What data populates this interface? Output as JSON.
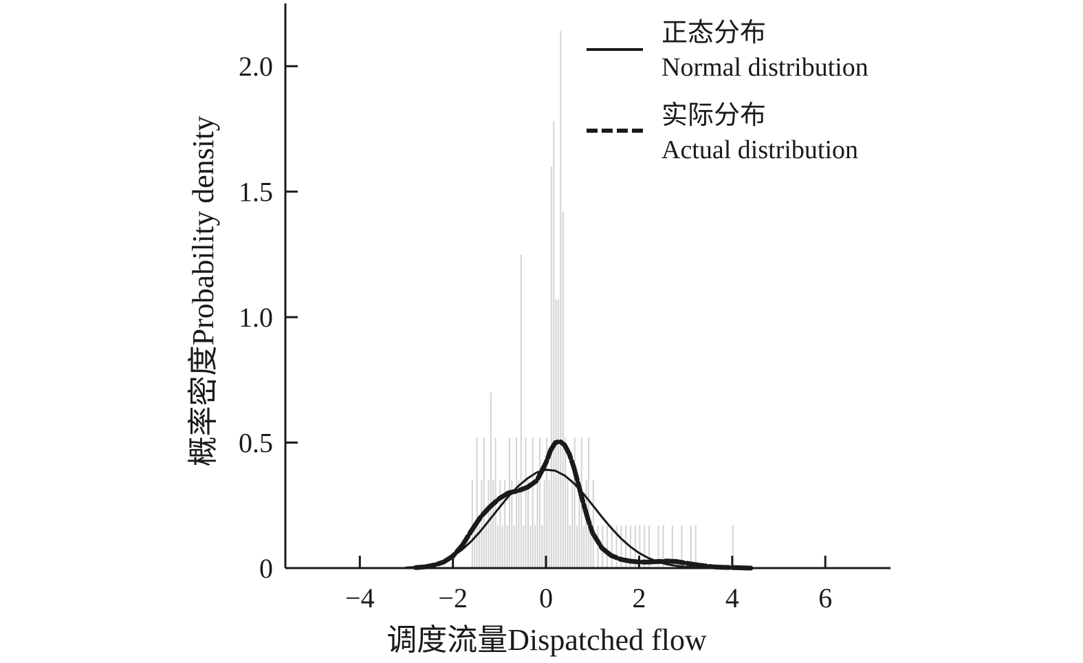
{
  "chart_data": {
    "type": "histogram-with-density",
    "xlabel": "调度流量Dispatched flow",
    "ylabel": "概率密度Probability density",
    "xlim": [
      -5.6,
      7.4
    ],
    "ylim": [
      0,
      2.25
    ],
    "x_ticks": [
      -4,
      -2,
      0,
      2,
      4,
      6
    ],
    "x_tick_labels": [
      "−4",
      "−2",
      "0",
      "2",
      "4",
      "6"
    ],
    "y_ticks": [
      0,
      0.5,
      1.0,
      1.5,
      2.0
    ],
    "y_tick_labels": [
      "0",
      "0.5",
      "1.0",
      "1.5",
      "2.0"
    ],
    "grid": false,
    "legend_position": "top-right",
    "legend": [
      {
        "label_cn": "正态分布",
        "label_en": "Normal distribution",
        "style": "solid"
      },
      {
        "label_cn": "实际分布",
        "label_en": "Actual distribution",
        "style": "dashed"
      }
    ],
    "colors": {
      "bars": "#d4d4d4",
      "lines": "#1a1a1a",
      "axes": "#1a1a1a"
    },
    "histogram": {
      "bin_width": 0.05,
      "bins": [
        {
          "x": -1.6,
          "density": 0.35
        },
        {
          "x": -1.55,
          "density": 0.17
        },
        {
          "x": -1.5,
          "density": 0.52
        },
        {
          "x": -1.45,
          "density": 0.17
        },
        {
          "x": -1.4,
          "density": 0.35
        },
        {
          "x": -1.35,
          "density": 0.52
        },
        {
          "x": -1.3,
          "density": 0.17
        },
        {
          "x": -1.25,
          "density": 0.35
        },
        {
          "x": -1.2,
          "density": 0.7
        },
        {
          "x": -1.15,
          "density": 0.35
        },
        {
          "x": -1.1,
          "density": 0.52
        },
        {
          "x": -1.05,
          "density": 0.17
        },
        {
          "x": -1.0,
          "density": 0.35
        },
        {
          "x": -0.95,
          "density": 0.17
        },
        {
          "x": -0.9,
          "density": 0.35
        },
        {
          "x": -0.85,
          "density": 0.17
        },
        {
          "x": -0.8,
          "density": 0.52
        },
        {
          "x": -0.75,
          "density": 0.35
        },
        {
          "x": -0.7,
          "density": 0.17
        },
        {
          "x": -0.65,
          "density": 0.52
        },
        {
          "x": -0.6,
          "density": 0.35
        },
        {
          "x": -0.55,
          "density": 1.25
        },
        {
          "x": -0.5,
          "density": 0.17
        },
        {
          "x": -0.45,
          "density": 0.52
        },
        {
          "x": -0.4,
          "density": 0.35
        },
        {
          "x": -0.35,
          "density": 0.17
        },
        {
          "x": -0.3,
          "density": 0.52
        },
        {
          "x": -0.25,
          "density": 0.17
        },
        {
          "x": -0.2,
          "density": 0.35
        },
        {
          "x": -0.15,
          "density": 0.52
        },
        {
          "x": -0.1,
          "density": 0.17
        },
        {
          "x": -0.05,
          "density": 0.35
        },
        {
          "x": 0.0,
          "density": 0.52
        },
        {
          "x": 0.05,
          "density": 0.35
        },
        {
          "x": 0.1,
          "density": 1.6
        },
        {
          "x": 0.15,
          "density": 1.78
        },
        {
          "x": 0.2,
          "density": 1.07
        },
        {
          "x": 0.25,
          "density": 1.07
        },
        {
          "x": 0.3,
          "density": 2.14
        },
        {
          "x": 0.35,
          "density": 1.42
        },
        {
          "x": 0.4,
          "density": 0.52
        },
        {
          "x": 0.45,
          "density": 0.35
        },
        {
          "x": 0.5,
          "density": 0.17
        },
        {
          "x": 0.55,
          "density": 0.35
        },
        {
          "x": 0.6,
          "density": 0.52
        },
        {
          "x": 0.65,
          "density": 0.17
        },
        {
          "x": 0.7,
          "density": 0.35
        },
        {
          "x": 0.75,
          "density": 0.52
        },
        {
          "x": 0.8,
          "density": 0.17
        },
        {
          "x": 0.85,
          "density": 0.35
        },
        {
          "x": 0.9,
          "density": 0.52
        },
        {
          "x": 0.95,
          "density": 0.17
        },
        {
          "x": 1.0,
          "density": 0.35
        },
        {
          "x": 1.1,
          "density": 0.17
        },
        {
          "x": 1.2,
          "density": 0.17
        },
        {
          "x": 1.3,
          "density": 0.17
        },
        {
          "x": 1.4,
          "density": 0.17
        },
        {
          "x": 1.5,
          "density": 0.17
        },
        {
          "x": 1.6,
          "density": 0.17
        },
        {
          "x": 1.7,
          "density": 0.17
        },
        {
          "x": 1.8,
          "density": 0.17
        },
        {
          "x": 1.9,
          "density": 0.17
        },
        {
          "x": 2.0,
          "density": 0.17
        },
        {
          "x": 2.1,
          "density": 0.17
        },
        {
          "x": 2.2,
          "density": 0.17
        },
        {
          "x": 2.4,
          "density": 0.17
        },
        {
          "x": 2.5,
          "density": 0.17
        },
        {
          "x": 2.7,
          "density": 0.17
        },
        {
          "x": 2.9,
          "density": 0.17
        },
        {
          "x": 3.1,
          "density": 0.17
        },
        {
          "x": 3.2,
          "density": 0.17
        },
        {
          "x": 4.0,
          "density": 0.17
        }
      ]
    },
    "series": [
      {
        "name": "正态分布 Normal distribution",
        "style": "solid",
        "x": [
          -3.0,
          -2.8,
          -2.6,
          -2.4,
          -2.2,
          -2.0,
          -1.8,
          -1.6,
          -1.4,
          -1.2,
          -1.0,
          -0.8,
          -0.6,
          -0.4,
          -0.2,
          0.0,
          0.2,
          0.4,
          0.6,
          0.8,
          1.0,
          1.2,
          1.4,
          1.6,
          1.8,
          2.0,
          2.2,
          2.4,
          2.6,
          2.8,
          3.0,
          3.2,
          3.4,
          3.6,
          3.8,
          4.0
        ],
        "y": [
          0.002,
          0.004,
          0.008,
          0.015,
          0.028,
          0.047,
          0.074,
          0.108,
          0.149,
          0.195,
          0.242,
          0.287,
          0.326,
          0.357,
          0.381,
          0.392,
          0.388,
          0.369,
          0.338,
          0.297,
          0.251,
          0.204,
          0.16,
          0.12,
          0.087,
          0.06,
          0.04,
          0.025,
          0.015,
          0.009,
          0.005,
          0.003,
          0.001,
          0.001,
          0.0,
          0.0
        ]
      },
      {
        "name": "实际分布 Actual distribution",
        "style": "dashed",
        "x": [
          -2.8,
          -2.6,
          -2.4,
          -2.2,
          -2.0,
          -1.8,
          -1.6,
          -1.4,
          -1.2,
          -1.0,
          -0.8,
          -0.6,
          -0.4,
          -0.2,
          0.0,
          0.1,
          0.2,
          0.3,
          0.4,
          0.5,
          0.6,
          0.7,
          0.8,
          0.9,
          1.0,
          1.2,
          1.4,
          1.6,
          1.8,
          2.0,
          2.2,
          2.4,
          2.6,
          2.8,
          3.0,
          3.2,
          3.4,
          3.6,
          3.8,
          4.0,
          4.2,
          4.4
        ],
        "y": [
          0.002,
          0.005,
          0.012,
          0.024,
          0.048,
          0.09,
          0.15,
          0.205,
          0.245,
          0.278,
          0.3,
          0.308,
          0.322,
          0.348,
          0.42,
          0.47,
          0.5,
          0.505,
          0.49,
          0.455,
          0.4,
          0.33,
          0.26,
          0.195,
          0.14,
          0.08,
          0.05,
          0.035,
          0.028,
          0.024,
          0.024,
          0.026,
          0.028,
          0.026,
          0.02,
          0.014,
          0.009,
          0.005,
          0.003,
          0.002,
          0.001,
          0.0
        ]
      }
    ]
  }
}
